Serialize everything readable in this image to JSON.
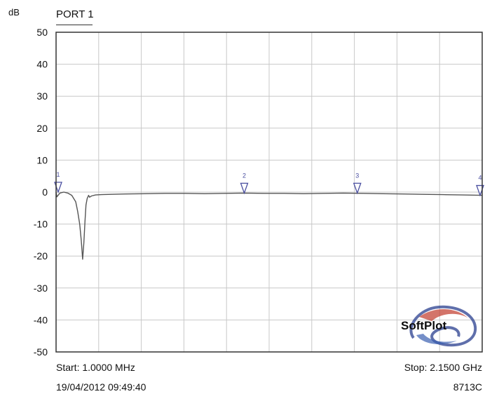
{
  "header": {
    "unit": "dB",
    "port": "PORT 1"
  },
  "footer": {
    "start": "Start: 1.0000 MHz",
    "stop": "Stop: 2.1500 GHz",
    "timestamp": "19/04/2012 09:49:40",
    "model": "8713C"
  },
  "logo": {
    "text": "SoftPlot"
  },
  "colors": {
    "trace": "#555555",
    "grid": "#c8c8c8",
    "marker": "#4a4fa0",
    "frame": "#333333"
  },
  "chart_data": {
    "type": "line",
    "title": "PORT 1",
    "ylabel": "dB",
    "xlabel": "",
    "x_unit": "MHz",
    "xlim": [
      1,
      2150
    ],
    "ylim": [
      -50,
      50
    ],
    "ytick_values": [
      50,
      40,
      30,
      20,
      10,
      0,
      -10,
      -20,
      -30,
      -40,
      -50
    ],
    "ytick_labels": [
      "50",
      "40",
      "30",
      "20",
      "10",
      "0",
      "-10",
      "-20",
      "-30",
      "-40",
      "-50"
    ],
    "x_divisions": 10,
    "grid": true,
    "series": [
      {
        "x": [
          1,
          5,
          20,
          40,
          60,
          80,
          100,
          110,
          120,
          128,
          135,
          141,
          147,
          152,
          158,
          165,
          170,
          180,
          200,
          230,
          280,
          350,
          450,
          550,
          650,
          750,
          850,
          950,
          1050,
          1150,
          1250,
          1350,
          1450,
          1550,
          1650,
          1750,
          1850,
          1950,
          2050,
          2150
        ],
        "y": [
          0,
          -1.5,
          -0.3,
          0,
          -0.3,
          -1,
          -3,
          -6,
          -10,
          -15,
          -21,
          -16,
          -9,
          -4,
          -2,
          -1,
          -1.6,
          -1.2,
          -0.9,
          -0.8,
          -0.7,
          -0.6,
          -0.5,
          -0.4,
          -0.4,
          -0.5,
          -0.4,
          -0.3,
          -0.4,
          -0.4,
          -0.5,
          -0.4,
          -0.3,
          -0.4,
          -0.5,
          -0.6,
          -0.7,
          -0.8,
          -0.9,
          -1
        ]
      }
    ],
    "markers": [
      {
        "label": "1",
        "x": 1,
        "y": 0
      },
      {
        "label": "2",
        "x": 950,
        "y": -0.3
      },
      {
        "label": "3",
        "x": 1520,
        "y": -0.3
      },
      {
        "label": "4",
        "x": 2150,
        "y": -1
      }
    ]
  }
}
